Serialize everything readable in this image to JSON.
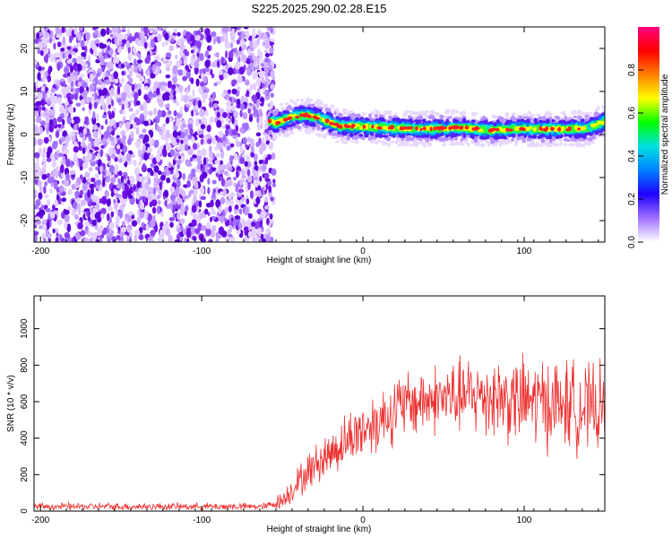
{
  "figure": {
    "title": "S225.2025.290.02.28.E15"
  },
  "chart_data": [
    {
      "type": "heatmap",
      "name": "spectrogram",
      "xlabel": "Height of straight line (km)",
      "ylabel": "Frequency (Hz)",
      "xlim": [
        -204,
        150
      ],
      "ylim": [
        -25,
        25
      ],
      "xticks": [
        -200,
        -100,
        0,
        100
      ],
      "yticks": [
        -20,
        -10,
        0,
        10,
        20
      ],
      "ridge": {
        "description_points_x": [
          -55,
          -45,
          -35,
          -25,
          -15,
          0,
          20,
          40,
          60,
          80,
          100,
          120,
          140,
          150
        ],
        "frequency_hz": [
          2.5,
          4.0,
          4.5,
          3.5,
          2.0,
          1.8,
          1.5,
          1.3,
          1.6,
          1.0,
          1.4,
          1.2,
          1.5,
          3.0
        ]
      },
      "noise_region": {
        "x_range": [
          -204,
          -55
        ],
        "f_range": [
          -25,
          25
        ]
      },
      "colorbar": {
        "label": "Normalized spectral amplitude",
        "range": [
          0.0,
          1.0
        ],
        "ticks": [
          0.0,
          0.2,
          0.4,
          0.6,
          0.8
        ],
        "tick_labels": [
          "0.0",
          "0.2",
          "0.4",
          "0.6",
          "0.8"
        ],
        "colors": [
          "#ffffff",
          "#a070ff",
          "#2000ff",
          "#0080ff",
          "#00e0e0",
          "#00ff00",
          "#ffff00",
          "#ff8000",
          "#ff0000",
          "#ff0080"
        ]
      }
    },
    {
      "type": "line",
      "name": "snr",
      "xlabel": "Height of straight line (km)",
      "ylabel": "SNR (10 * v/v)",
      "xlim": [
        -204,
        150
      ],
      "ylim": [
        0,
        1180
      ],
      "xticks": [
        -200,
        -100,
        0,
        100
      ],
      "yticks": [
        0,
        200,
        400,
        600,
        800,
        1000
      ],
      "color": "#ee3030",
      "series": [
        {
          "name": "SNR",
          "x": [
            -204,
            -150,
            -100,
            -60,
            -50,
            -40,
            -30,
            -20,
            -10,
            0,
            10,
            20,
            30,
            40,
            50,
            60,
            70,
            80,
            90,
            100,
            110,
            120,
            130,
            140,
            150
          ],
          "values": [
            25,
            25,
            25,
            25,
            60,
            160,
            250,
            320,
            390,
            450,
            500,
            560,
            590,
            610,
            620,
            625,
            630,
            640,
            610,
            600,
            600,
            590,
            580,
            560,
            560
          ],
          "spread": [
            20,
            20,
            20,
            20,
            50,
            90,
            110,
            130,
            150,
            170,
            180,
            190,
            190,
            190,
            200,
            210,
            220,
            240,
            240,
            250,
            260,
            250,
            250,
            240,
            240
          ]
        }
      ]
    }
  ]
}
